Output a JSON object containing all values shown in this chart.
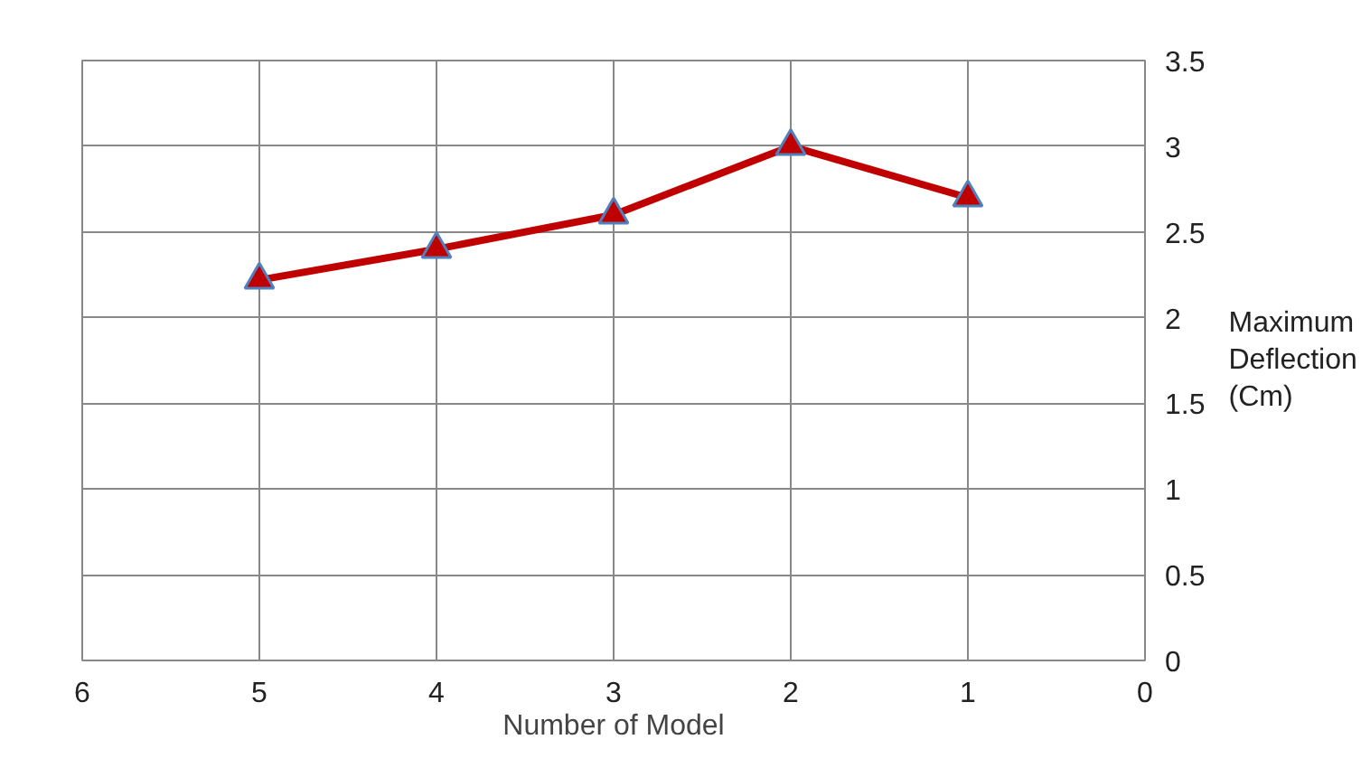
{
  "chart_data": {
    "type": "line",
    "xlabel": "Number of Model",
    "ylabel": "Maximum Deflection (Cm)",
    "x": [
      5,
      4,
      3,
      2,
      1
    ],
    "series": [
      {
        "color": "#c00000",
        "values": [
          2.22,
          2.4,
          2.6,
          3.0,
          2.7
        ]
      }
    ],
    "xlim": [
      6,
      0
    ],
    "xticks": [
      6,
      5,
      4,
      3,
      2,
      1,
      0
    ],
    "ylim": [
      0,
      3.5
    ],
    "yticks": [
      0,
      0.5,
      1,
      1.5,
      2,
      2.5,
      3,
      3.5
    ],
    "grid": true,
    "marker": "triangle",
    "line_style": "solid"
  }
}
